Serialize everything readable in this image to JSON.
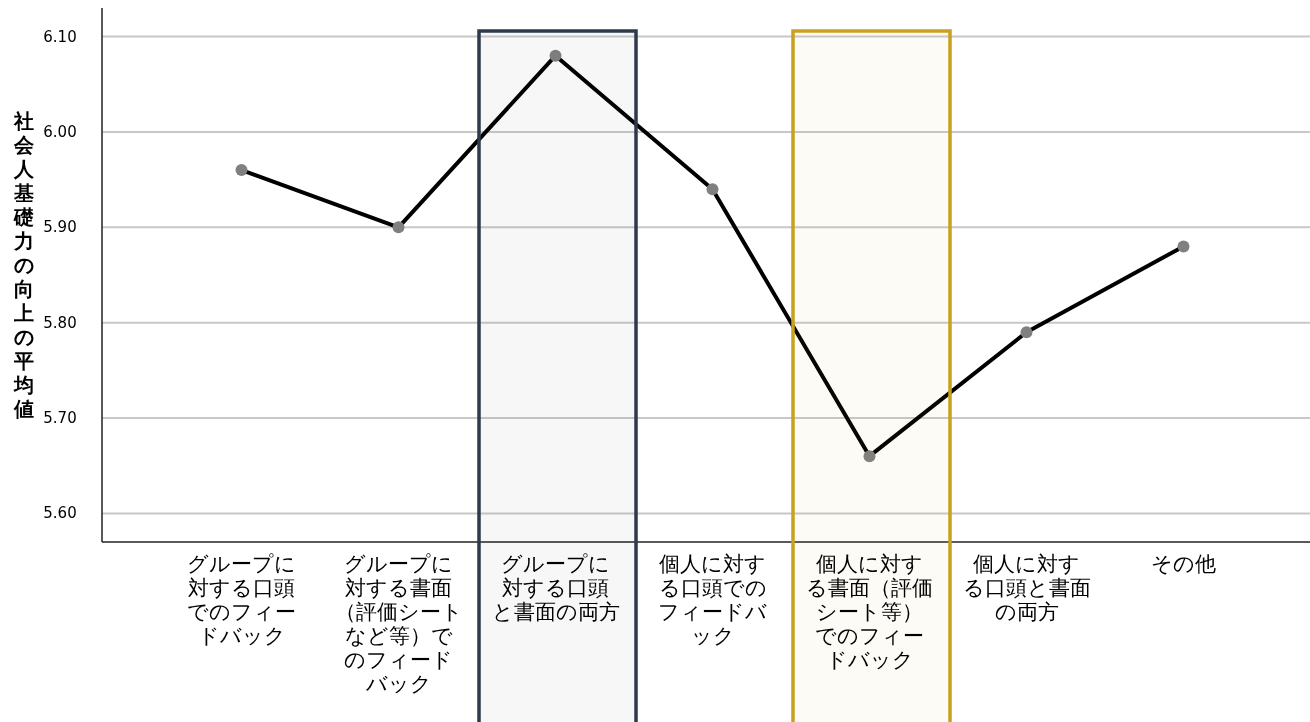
{
  "chart_data": {
    "type": "line",
    "ylabel": "社会人基礎力の向上の平均値",
    "categories": [
      "グループに対する口頭でのフィードバック",
      "グループに対する書面（評価シートなど等）でのフィードバック",
      "グループに対する口頭と書面の両方",
      "個人に対する口頭でのフィードバック",
      "個人に対する書面（評価シート等）でのフィードバック",
      "個人に対する口頭と書面の両方",
      "その他"
    ],
    "series": [
      {
        "color": "#000000",
        "values": [
          5.96,
          5.9,
          6.08,
          5.94,
          5.66,
          5.79,
          5.88
        ]
      }
    ],
    "ylim": [
      5.57,
      6.13
    ],
    "yticks": [
      {
        "value": 5.6,
        "label": "5.60"
      },
      {
        "value": 5.7,
        "label": "5.70"
      },
      {
        "value": 5.8,
        "label": "5.80"
      },
      {
        "value": 5.9,
        "label": "5.90"
      },
      {
        "value": 6.0,
        "label": "6.00"
      },
      {
        "value": 6.1,
        "label": "6.10"
      }
    ],
    "grid": "y",
    "marker": "circle",
    "line_style": "solid",
    "bands": [
      {
        "axis": "x",
        "from": "グループに対する口頭と書面の両方",
        "to": "グループに対する口頭と書面の両方",
        "color": "#2e3a4c"
      },
      {
        "axis": "x",
        "from": "個人に対する書面（評価シート等）でのフィードバック",
        "to": "個人に対する書面（評価シート等）でのフィードバック",
        "color": "#c9a021"
      }
    ]
  }
}
